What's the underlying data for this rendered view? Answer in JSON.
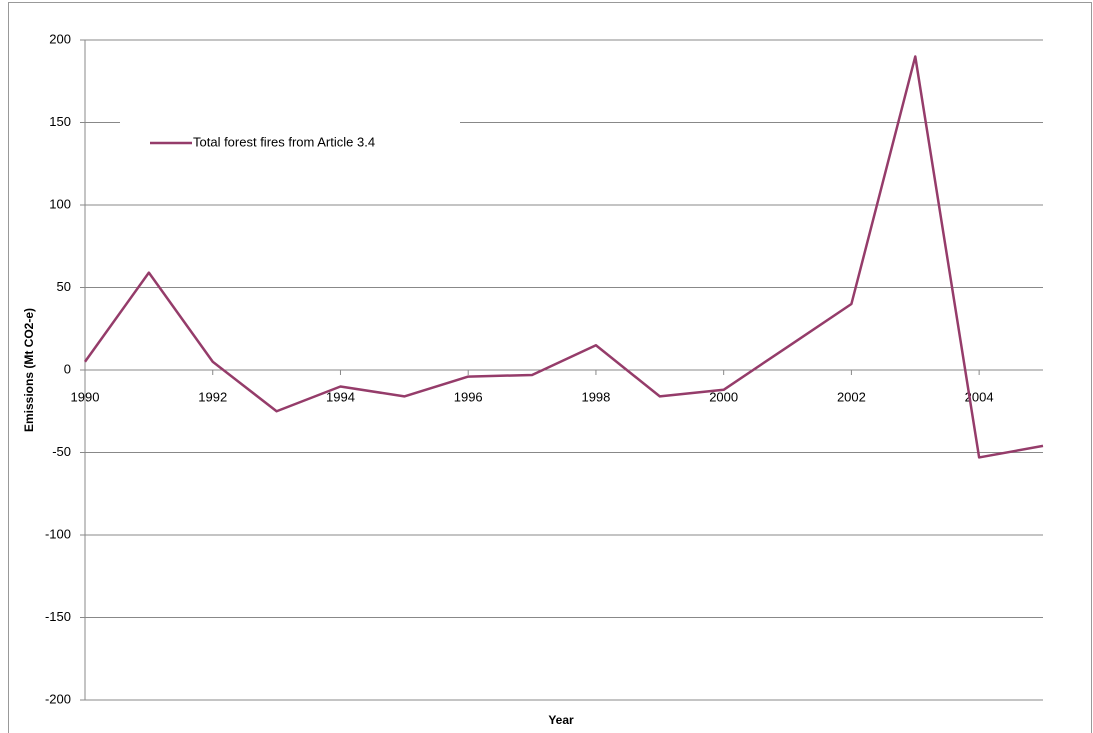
{
  "chart_data": {
    "type": "line",
    "x_label": "Year",
    "y_label": "Emissions (Mt CO2-e)",
    "x": [
      1990,
      1991,
      1992,
      1993,
      1994,
      1995,
      1996,
      1997,
      1998,
      1999,
      2000,
      2001,
      2002,
      2003,
      2004,
      2005
    ],
    "series": [
      {
        "name": "Total forest fires from Article 3.4",
        "color": "#953c6a",
        "values": [
          5,
          59,
          5,
          -25,
          -10,
          -16,
          -4,
          -3,
          15,
          -16,
          -12,
          14,
          40,
          190,
          -53,
          -46
        ]
      }
    ],
    "xlim": [
      1990,
      2005
    ],
    "xticks": [
      1990,
      1992,
      1994,
      1996,
      1998,
      2000,
      2002,
      2004
    ],
    "ylim": [
      -200,
      200
    ],
    "yticks": [
      -200,
      -150,
      -100,
      -50,
      0,
      50,
      100,
      150,
      200
    ],
    "grid": true,
    "legend": "upper-left"
  }
}
